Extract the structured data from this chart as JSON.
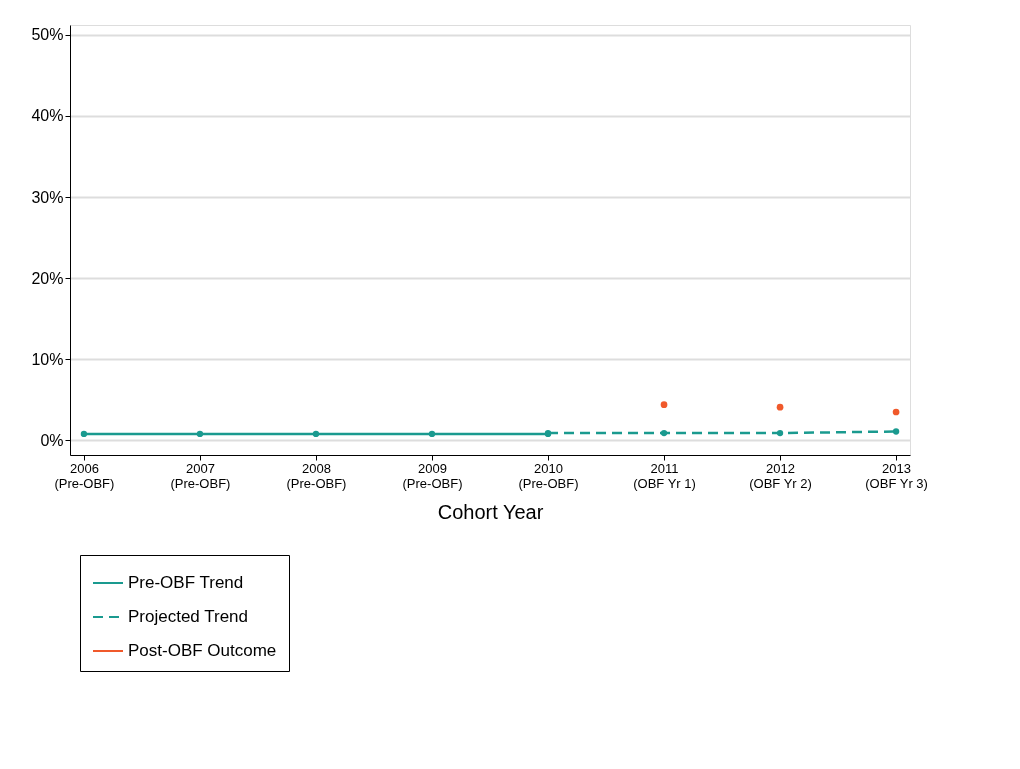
{
  "chart_data": {
    "type": "line",
    "xlabel": "Cohort Year",
    "categories": [
      "2006\n(Pre-OBF)",
      "2007\n(Pre-OBF)",
      "2008\n(Pre-OBF)",
      "2009\n(Pre-OBF)",
      "2010\n(Pre-OBF)",
      "2011\n(OBF Yr 1)",
      "2012\n(OBF Yr 2)",
      "2013\n(OBF Yr 3)"
    ],
    "series": [
      {
        "name": "Pre-OBF Trend",
        "color": "#1a9a8f",
        "line_style": "solid",
        "values": [
          0.8,
          0.8,
          0.8,
          0.8,
          0.8,
          null,
          null,
          null
        ]
      },
      {
        "name": "Projected Trend",
        "color": "#1a9a8f",
        "line_style": "dashed",
        "values": [
          null,
          null,
          null,
          null,
          0.9,
          0.9,
          0.9,
          1.1
        ]
      },
      {
        "name": "Post-OBF Outcome",
        "color": "#f0592b",
        "type": "scatter",
        "values": [
          null,
          null,
          null,
          null,
          null,
          4.4,
          4.1,
          3.5
        ]
      }
    ],
    "ylim": [
      -1.8,
      51.2
    ],
    "yticks": [
      {
        "value": 0,
        "label": "0%"
      },
      {
        "value": 10,
        "label": "10%"
      },
      {
        "value": 20,
        "label": "20%"
      },
      {
        "value": 30,
        "label": "30%"
      },
      {
        "value": 40,
        "label": "40%"
      },
      {
        "value": 50,
        "label": "50%"
      }
    ],
    "grid": "y",
    "marker": "circle",
    "legend": "bottom left"
  }
}
